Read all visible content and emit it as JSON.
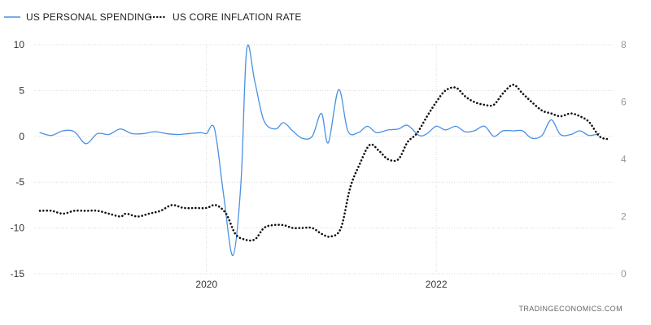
{
  "source_label": "TRADINGECONOMICS.COM",
  "chart_data": {
    "type": "line",
    "x_ticks": [
      {
        "x": 2020.0,
        "label": "2020"
      },
      {
        "x": 2022.0,
        "label": "2022"
      }
    ],
    "xlim": [
      2018.5,
      2023.55
    ],
    "left_axis": {
      "ylim": [
        -15,
        10
      ],
      "ticks": [
        {
          "v": 10,
          "label": "10"
        },
        {
          "v": 5,
          "label": "5"
        },
        {
          "v": 0,
          "label": "0"
        },
        {
          "v": -5,
          "label": "-5"
        },
        {
          "v": -10,
          "label": "-10"
        },
        {
          "v": -15,
          "label": "-15"
        }
      ]
    },
    "right_axis": {
      "ylim": [
        0,
        8
      ],
      "ticks": [
        {
          "v": 8,
          "label": "8"
        },
        {
          "v": 6,
          "label": "6"
        },
        {
          "v": 4,
          "label": "4"
        },
        {
          "v": 2,
          "label": "2"
        },
        {
          "v": 0,
          "label": "0"
        }
      ]
    },
    "grid": true,
    "legend_position": "top-left",
    "series": [
      {
        "name": "US PERSONAL SPENDING",
        "axis": "left",
        "color": "#4a90e2",
        "style": "solid",
        "points": [
          [
            2018.55,
            0.4
          ],
          [
            2018.65,
            0.1
          ],
          [
            2018.75,
            0.6
          ],
          [
            2018.85,
            0.5
          ],
          [
            2018.95,
            -0.8
          ],
          [
            2019.05,
            0.3
          ],
          [
            2019.15,
            0.2
          ],
          [
            2019.25,
            0.8
          ],
          [
            2019.35,
            0.3
          ],
          [
            2019.45,
            0.3
          ],
          [
            2019.55,
            0.5
          ],
          [
            2019.65,
            0.3
          ],
          [
            2019.75,
            0.2
          ],
          [
            2019.85,
            0.3
          ],
          [
            2019.95,
            0.4
          ],
          [
            2020.0,
            0.3
          ],
          [
            2020.07,
            0.8
          ],
          [
            2020.15,
            -6.5
          ],
          [
            2020.23,
            -13.0
          ],
          [
            2020.3,
            -5.0
          ],
          [
            2020.35,
            9.5
          ],
          [
            2020.42,
            6.0
          ],
          [
            2020.5,
            1.7
          ],
          [
            2020.6,
            0.8
          ],
          [
            2020.67,
            1.5
          ],
          [
            2020.75,
            0.6
          ],
          [
            2020.83,
            -0.2
          ],
          [
            2020.92,
            0.0
          ],
          [
            2021.0,
            2.5
          ],
          [
            2021.06,
            -0.7
          ],
          [
            2021.15,
            5.1
          ],
          [
            2021.23,
            0.6
          ],
          [
            2021.32,
            0.4
          ],
          [
            2021.4,
            1.1
          ],
          [
            2021.48,
            0.4
          ],
          [
            2021.58,
            0.7
          ],
          [
            2021.67,
            0.8
          ],
          [
            2021.75,
            1.2
          ],
          [
            2021.85,
            0.1
          ],
          [
            2021.92,
            0.3
          ],
          [
            2022.0,
            1.1
          ],
          [
            2022.08,
            0.7
          ],
          [
            2022.17,
            1.1
          ],
          [
            2022.25,
            0.5
          ],
          [
            2022.33,
            0.6
          ],
          [
            2022.42,
            1.1
          ],
          [
            2022.5,
            0.0
          ],
          [
            2022.58,
            0.6
          ],
          [
            2022.67,
            0.6
          ],
          [
            2022.75,
            0.6
          ],
          [
            2022.83,
            -0.2
          ],
          [
            2022.92,
            0.1
          ],
          [
            2023.0,
            1.8
          ],
          [
            2023.08,
            0.2
          ],
          [
            2023.17,
            0.2
          ],
          [
            2023.25,
            0.6
          ],
          [
            2023.33,
            0.1
          ],
          [
            2023.42,
            0.3
          ]
        ]
      },
      {
        "name": "US CORE INFLATION RATE",
        "axis": "right",
        "color": "#111111",
        "style": "dotted",
        "points": [
          [
            2018.55,
            2.2
          ],
          [
            2018.65,
            2.2
          ],
          [
            2018.75,
            2.1
          ],
          [
            2018.85,
            2.2
          ],
          [
            2018.95,
            2.2
          ],
          [
            2019.05,
            2.2
          ],
          [
            2019.15,
            2.1
          ],
          [
            2019.25,
            2.0
          ],
          [
            2019.3,
            2.1
          ],
          [
            2019.4,
            2.0
          ],
          [
            2019.5,
            2.1
          ],
          [
            2019.6,
            2.2
          ],
          [
            2019.7,
            2.4
          ],
          [
            2019.8,
            2.3
          ],
          [
            2019.9,
            2.3
          ],
          [
            2020.0,
            2.3
          ],
          [
            2020.08,
            2.4
          ],
          [
            2020.17,
            2.1
          ],
          [
            2020.25,
            1.4
          ],
          [
            2020.33,
            1.2
          ],
          [
            2020.42,
            1.2
          ],
          [
            2020.5,
            1.6
          ],
          [
            2020.58,
            1.7
          ],
          [
            2020.67,
            1.7
          ],
          [
            2020.75,
            1.6
          ],
          [
            2020.83,
            1.6
          ],
          [
            2020.92,
            1.6
          ],
          [
            2021.0,
            1.4
          ],
          [
            2021.08,
            1.3
          ],
          [
            2021.17,
            1.6
          ],
          [
            2021.25,
            3.0
          ],
          [
            2021.33,
            3.8
          ],
          [
            2021.42,
            4.5
          ],
          [
            2021.5,
            4.3
          ],
          [
            2021.58,
            4.0
          ],
          [
            2021.67,
            4.0
          ],
          [
            2021.75,
            4.6
          ],
          [
            2021.83,
            4.9
          ],
          [
            2021.92,
            5.5
          ],
          [
            2022.0,
            6.0
          ],
          [
            2022.08,
            6.4
          ],
          [
            2022.17,
            6.5
          ],
          [
            2022.25,
            6.2
          ],
          [
            2022.33,
            6.0
          ],
          [
            2022.42,
            5.9
          ],
          [
            2022.5,
            5.9
          ],
          [
            2022.58,
            6.3
          ],
          [
            2022.67,
            6.6
          ],
          [
            2022.75,
            6.3
          ],
          [
            2022.83,
            6.0
          ],
          [
            2022.92,
            5.7
          ],
          [
            2023.0,
            5.6
          ],
          [
            2023.08,
            5.5
          ],
          [
            2023.17,
            5.6
          ],
          [
            2023.25,
            5.5
          ],
          [
            2023.33,
            5.3
          ],
          [
            2023.42,
            4.8
          ],
          [
            2023.5,
            4.7
          ]
        ]
      }
    ]
  }
}
